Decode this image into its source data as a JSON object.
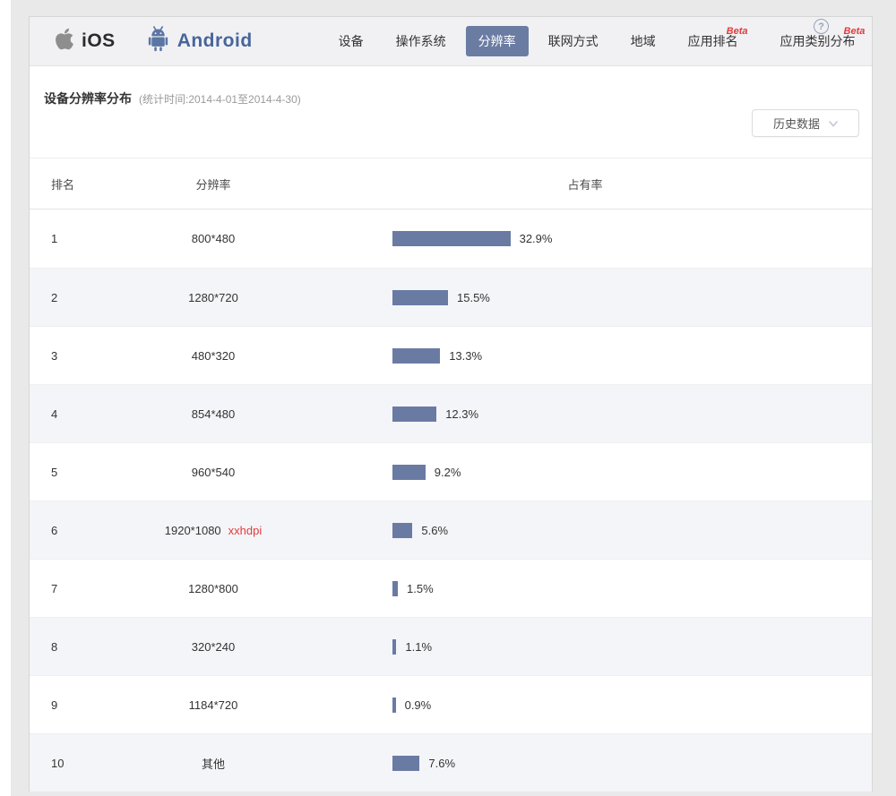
{
  "header": {
    "platforms": [
      {
        "label": "iOS",
        "icon": "apple-icon",
        "active": false
      },
      {
        "label": "Android",
        "icon": "android-icon",
        "active": true
      }
    ],
    "nav": {
      "items": [
        {
          "label": "设备",
          "active": false,
          "beta": ""
        },
        {
          "label": "操作系统",
          "active": false,
          "beta": ""
        },
        {
          "label": "分辨率",
          "active": true,
          "beta": ""
        },
        {
          "label": "联网方式",
          "active": false,
          "beta": ""
        },
        {
          "label": "地域",
          "active": false,
          "beta": ""
        },
        {
          "label": "应用排名",
          "active": false,
          "beta": "Beta"
        },
        {
          "label": "应用类别分布",
          "active": false,
          "beta": "Beta"
        }
      ],
      "help_icon": "?"
    }
  },
  "section": {
    "title": "设备分辨率分布",
    "subtitle": "(统计时间:2014-4-01至2014-4-30)",
    "dropdown": {
      "value": "历史数据",
      "chevron_icon": "chevron-down-icon"
    }
  },
  "table": {
    "columns": [
      "排名",
      "分辨率",
      "占有率"
    ],
    "rows": [
      {
        "rank": "1",
        "resolution": "800*480",
        "tag": "",
        "share": 32.9,
        "share_label": "32.9%"
      },
      {
        "rank": "2",
        "resolution": "1280*720",
        "tag": "",
        "share": 15.5,
        "share_label": "15.5%"
      },
      {
        "rank": "3",
        "resolution": "480*320",
        "tag": "",
        "share": 13.3,
        "share_label": "13.3%"
      },
      {
        "rank": "4",
        "resolution": "854*480",
        "tag": "",
        "share": 12.3,
        "share_label": "12.3%"
      },
      {
        "rank": "5",
        "resolution": "960*540",
        "tag": "",
        "share": 9.2,
        "share_label": "9.2%"
      },
      {
        "rank": "6",
        "resolution": "1920*1080",
        "tag": "xxhdpi",
        "share": 5.6,
        "share_label": "5.6%"
      },
      {
        "rank": "7",
        "resolution": "1280*800",
        "tag": "",
        "share": 1.5,
        "share_label": "1.5%"
      },
      {
        "rank": "8",
        "resolution": "320*240",
        "tag": "",
        "share": 1.1,
        "share_label": "1.1%"
      },
      {
        "rank": "9",
        "resolution": "1184*720",
        "tag": "",
        "share": 0.9,
        "share_label": "0.9%"
      },
      {
        "rank": "10",
        "resolution": "其他",
        "tag": "",
        "share": 7.6,
        "share_label": "7.6%"
      }
    ]
  },
  "chart_data": {
    "type": "bar",
    "orientation": "horizontal",
    "title": "设备分辨率分布",
    "subtitle": "统计时间:2014-4-01至2014-4-30",
    "categories": [
      "800*480",
      "1280*720",
      "480*320",
      "854*480",
      "960*540",
      "1920*1080",
      "1280*800",
      "320*240",
      "1184*720",
      "其他"
    ],
    "values": [
      32.9,
      15.5,
      13.3,
      12.3,
      9.2,
      5.6,
      1.5,
      1.1,
      0.9,
      7.6
    ],
    "unit": "%",
    "annotations": [
      {
        "category": "1920*1080",
        "text": "xxhdpi"
      }
    ]
  },
  "colors": {
    "bar": "#6a7ba3",
    "active_tab_bg": "#6b7ca3",
    "beta_red": "#e23b3b",
    "tag_red": "#e23b3b",
    "stripe_bg": "#f4f5f8",
    "nav_band_bg": "#f1f1f4",
    "android_brand": "#47659a",
    "apple_gray": "#8e8e8e"
  }
}
